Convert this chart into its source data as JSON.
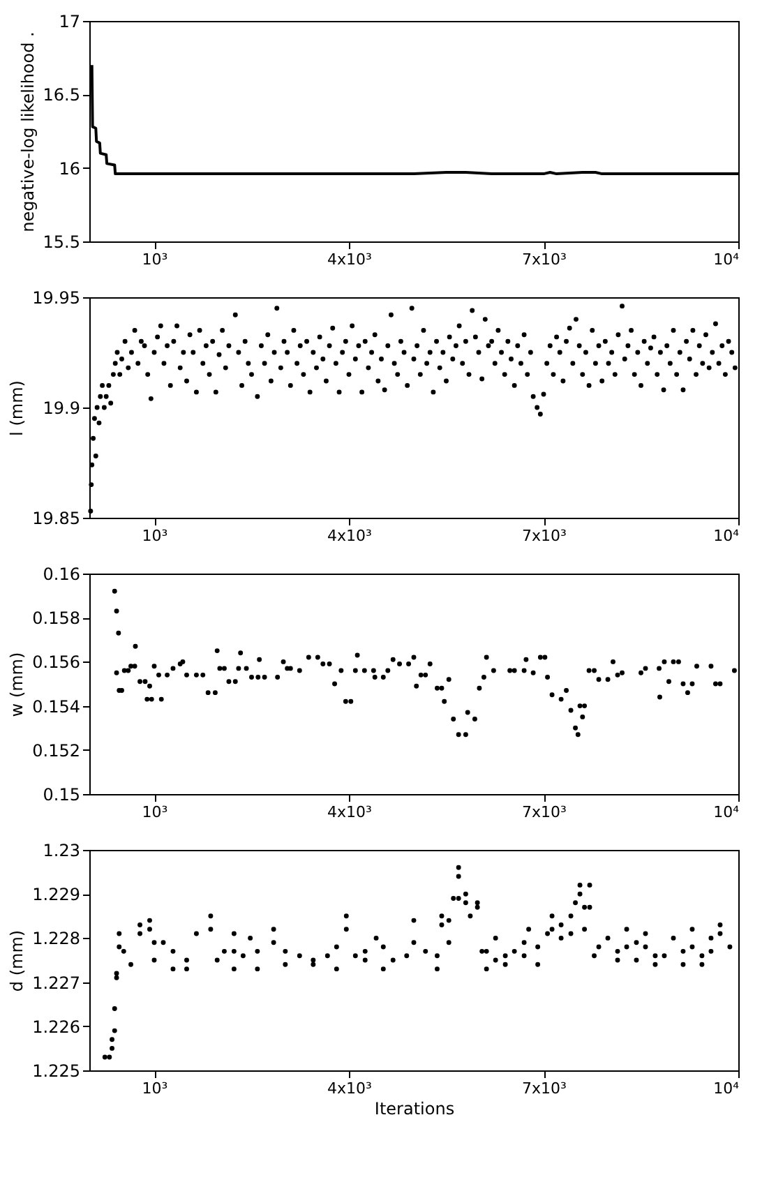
{
  "chart_data": [
    {
      "type": "line",
      "ylabel": "negative-log likelihood .",
      "color": "#000000",
      "xlim": [
        0,
        10000
      ],
      "ylim": [
        15.5,
        17
      ],
      "yticks": [
        15.5,
        16,
        16.5,
        17
      ],
      "grid": false,
      "tick_labels": true,
      "marker": "none",
      "line_style": "solid",
      "xticks": [
        {
          "value": 1000,
          "label": "10³"
        },
        {
          "value": 4000,
          "label": "4x10³"
        },
        {
          "value": 7000,
          "label": "7x10³"
        },
        {
          "value": 10000,
          "label": "10⁴"
        }
      ],
      "x": [
        40,
        50,
        100,
        110,
        160,
        170,
        260,
        270,
        390,
        400,
        600,
        1000,
        2000,
        3000,
        4000,
        5000,
        5500,
        5800,
        6200,
        7000,
        7100,
        7200,
        7600,
        7800,
        7900,
        8500,
        9000,
        10000
      ],
      "values": [
        16.7,
        16.28,
        16.27,
        16.18,
        16.17,
        16.1,
        16.09,
        16.03,
        16.02,
        15.96,
        15.96,
        15.96,
        15.96,
        15.96,
        15.96,
        15.96,
        15.97,
        15.97,
        15.96,
        15.96,
        15.97,
        15.96,
        15.97,
        15.97,
        15.96,
        15.96,
        15.96,
        15.96
      ]
    },
    {
      "type": "scatter",
      "ylabel": "l (mm)",
      "color": "#000000",
      "xlim": [
        0,
        10000
      ],
      "ylim": [
        19.85,
        19.95
      ],
      "yticks": [
        19.85,
        19.9,
        19.95
      ],
      "grid": false,
      "marker": "circle",
      "xticks": [
        {
          "value": 1000,
          "label": "10³"
        },
        {
          "value": 4000,
          "label": "4x10³"
        },
        {
          "value": 7000,
          "label": "7x10³"
        },
        {
          "value": 10000,
          "label": "10⁴"
        }
      ],
      "x": [
        20,
        30,
        40,
        60,
        80,
        100,
        120,
        150,
        170,
        200,
        230,
        260,
        300,
        330,
        370,
        400,
        430,
        470,
        500,
        550,
        600,
        650,
        700,
        750,
        800,
        850,
        900,
        950,
        1000,
        1050,
        1100,
        1150,
        1200,
        1250,
        1300,
        1350,
        1400,
        1450,
        1500,
        1550,
        1600,
        1650,
        1700,
        1750,
        1800,
        1850,
        1900,
        1950,
        2000,
        2050,
        2100,
        2150,
        2250,
        2300,
        2350,
        2400,
        2450,
        2500,
        2590,
        2650,
        2700,
        2750,
        2800,
        2850,
        2890,
        2950,
        3000,
        3050,
        3100,
        3150,
        3200,
        3250,
        3300,
        3350,
        3400,
        3450,
        3500,
        3550,
        3600,
        3650,
        3700,
        3750,
        3800,
        3850,
        3900,
        3950,
        4000,
        4050,
        4100,
        4150,
        4200,
        4250,
        4300,
        4350,
        4400,
        4450,
        4500,
        4550,
        4600,
        4650,
        4700,
        4750,
        4800,
        4850,
        4900,
        4970,
        5000,
        5050,
        5100,
        5150,
        5200,
        5250,
        5300,
        5350,
        5400,
        5450,
        5500,
        5550,
        5600,
        5650,
        5700,
        5750,
        5800,
        5850,
        5900,
        5950,
        6000,
        6050,
        6100,
        6150,
        6200,
        6250,
        6300,
        6350,
        6400,
        6450,
        6500,
        6550,
        6600,
        6650,
        6700,
        6750,
        6800,
        6840,
        6900,
        6950,
        7000,
        7050,
        7100,
        7150,
        7200,
        7250,
        7300,
        7350,
        7400,
        7450,
        7500,
        7550,
        7600,
        7650,
        7700,
        7750,
        7800,
        7850,
        7900,
        7950,
        8000,
        8050,
        8100,
        8150,
        8210,
        8250,
        8300,
        8350,
        8400,
        8450,
        8500,
        8550,
        8600,
        8650,
        8700,
        8750,
        8800,
        8850,
        8900,
        8950,
        9000,
        9050,
        9100,
        9150,
        9200,
        9250,
        9300,
        9350,
        9400,
        9450,
        9500,
        9550,
        9600,
        9650,
        9700,
        9750,
        9800,
        9850,
        9900,
        9950
      ],
      "values": [
        19.853,
        19.865,
        19.874,
        19.886,
        19.895,
        19.878,
        19.9,
        19.893,
        19.905,
        19.91,
        19.9,
        19.905,
        19.91,
        19.902,
        19.915,
        19.92,
        19.925,
        19.915,
        19.922,
        19.93,
        19.918,
        19.925,
        19.935,
        19.92,
        19.93,
        19.928,
        19.915,
        19.904,
        19.925,
        19.932,
        19.937,
        19.92,
        19.928,
        19.91,
        19.93,
        19.937,
        19.918,
        19.925,
        19.912,
        19.933,
        19.925,
        19.907,
        19.935,
        19.92,
        19.928,
        19.915,
        19.93,
        19.907,
        19.924,
        19.935,
        19.918,
        19.928,
        19.942,
        19.925,
        19.91,
        19.93,
        19.92,
        19.915,
        19.905,
        19.928,
        19.92,
        19.933,
        19.912,
        19.925,
        19.945,
        19.918,
        19.93,
        19.925,
        19.91,
        19.935,
        19.92,
        19.928,
        19.915,
        19.93,
        19.907,
        19.925,
        19.918,
        19.932,
        19.922,
        19.912,
        19.928,
        19.936,
        19.92,
        19.907,
        19.925,
        19.93,
        19.915,
        19.937,
        19.922,
        19.928,
        19.907,
        19.93,
        19.918,
        19.925,
        19.933,
        19.912,
        19.922,
        19.908,
        19.928,
        19.942,
        19.92,
        19.915,
        19.93,
        19.925,
        19.91,
        19.945,
        19.922,
        19.928,
        19.915,
        19.935,
        19.92,
        19.925,
        19.907,
        19.93,
        19.918,
        19.925,
        19.912,
        19.932,
        19.922,
        19.928,
        19.937,
        19.92,
        19.93,
        19.915,
        19.944,
        19.932,
        19.925,
        19.913,
        19.94,
        19.928,
        19.93,
        19.92,
        19.935,
        19.925,
        19.915,
        19.93,
        19.922,
        19.91,
        19.928,
        19.92,
        19.933,
        19.915,
        19.925,
        19.905,
        19.9,
        19.897,
        19.906,
        19.92,
        19.928,
        19.915,
        19.932,
        19.925,
        19.912,
        19.93,
        19.936,
        19.92,
        19.94,
        19.928,
        19.915,
        19.925,
        19.91,
        19.935,
        19.92,
        19.928,
        19.912,
        19.93,
        19.92,
        19.925,
        19.915,
        19.933,
        19.946,
        19.922,
        19.928,
        19.935,
        19.915,
        19.925,
        19.91,
        19.93,
        19.92,
        19.927,
        19.932,
        19.915,
        19.925,
        19.908,
        19.928,
        19.92,
        19.935,
        19.915,
        19.925,
        19.908,
        19.93,
        19.922,
        19.935,
        19.915,
        19.928,
        19.92,
        19.933,
        19.918,
        19.925,
        19.938,
        19.92,
        19.928,
        19.915,
        19.93,
        19.925,
        19.918
      ]
    },
    {
      "type": "scatter",
      "ylabel": "w (mm)",
      "color": "#000000",
      "xlim": [
        0,
        10000
      ],
      "ylim": [
        0.15,
        0.16
      ],
      "yticks": [
        0.15,
        0.152,
        0.154,
        0.156,
        0.158,
        0.16
      ],
      "grid": false,
      "marker": "circle",
      "xticks": [
        {
          "value": 1000,
          "label": "10³"
        },
        {
          "value": 4000,
          "label": "4x10³"
        },
        {
          "value": 7000,
          "label": "7x10³"
        },
        {
          "value": 10000,
          "label": "10⁴"
        }
      ],
      "x": [
        390,
        420,
        450,
        420,
        460,
        500,
        540,
        600,
        640,
        700,
        710,
        780,
        860,
        890,
        960,
        930,
        1000,
        1110,
        1070,
        1200,
        1290,
        1400,
        1440,
        1500,
        1650,
        1750,
        1830,
        1940,
        1970,
        2010,
        2080,
        2150,
        2250,
        2300,
        2420,
        2330,
        2500,
        2600,
        2620,
        2700,
        2900,
        2990,
        3050,
        3100,
        3240,
        3380,
        3520,
        3600,
        3700,
        3780,
        3880,
        3950,
        4030,
        4100,
        4130,
        4240,
        4380,
        4400,
        4530,
        4600,
        4680,
        4780,
        4920,
        5000,
        5040,
        5110,
        5180,
        5250,
        5360,
        5430,
        5470,
        5540,
        5610,
        5690,
        5800,
        5830,
        5940,
        6010,
        6080,
        6120,
        6230,
        6480,
        6550,
        6700,
        6730,
        6840,
        6950,
        7020,
        7060,
        7130,
        7270,
        7350,
        7420,
        7490,
        7530,
        7560,
        7630,
        7600,
        7700,
        7780,
        7850,
        7990,
        8070,
        8140,
        8210,
        8500,
        8570,
        8780,
        8790,
        8860,
        8930,
        9000,
        9080,
        9150,
        9290,
        9220,
        9360,
        9580,
        9650,
        9720,
        9940
      ],
      "values": [
        0.1592,
        0.1583,
        0.1573,
        0.1555,
        0.1547,
        0.1547,
        0.1556,
        0.1556,
        0.1558,
        0.1558,
        0.1567,
        0.1551,
        0.1551,
        0.1543,
        0.1543,
        0.1549,
        0.1558,
        0.1543,
        0.1554,
        0.1554,
        0.1557,
        0.1559,
        0.156,
        0.1554,
        0.1554,
        0.1554,
        0.1546,
        0.1546,
        0.1565,
        0.1557,
        0.1557,
        0.1551,
        0.1551,
        0.1557,
        0.1557,
        0.1564,
        0.1553,
        0.1553,
        0.1561,
        0.1553,
        0.1553,
        0.156,
        0.1557,
        0.1557,
        0.1556,
        0.1562,
        0.1562,
        0.1559,
        0.1559,
        0.155,
        0.1556,
        0.1542,
        0.1542,
        0.1556,
        0.1563,
        0.1556,
        0.1556,
        0.1553,
        0.1553,
        0.1556,
        0.1561,
        0.1559,
        0.1559,
        0.1562,
        0.1549,
        0.1554,
        0.1554,
        0.1559,
        0.1548,
        0.1548,
        0.1542,
        0.1552,
        0.1534,
        0.1527,
        0.1527,
        0.1537,
        0.1534,
        0.1548,
        0.1553,
        0.1562,
        0.1556,
        0.1556,
        0.1556,
        0.1556,
        0.1561,
        0.1555,
        0.1562,
        0.1562,
        0.1553,
        0.1545,
        0.1543,
        0.1547,
        0.1538,
        0.153,
        0.1527,
        0.154,
        0.154,
        0.1535,
        0.1556,
        0.1556,
        0.1552,
        0.1552,
        0.156,
        0.1554,
        0.1555,
        0.1555,
        0.1557,
        0.1557,
        0.1544,
        0.156,
        0.1551,
        0.156,
        0.156,
        0.155,
        0.155,
        0.1546,
        0.1558,
        0.1558,
        0.155,
        0.155,
        0.1556
      ]
    },
    {
      "type": "scatter",
      "ylabel": "d (mm)",
      "xlabel": "Iterations",
      "color": "#000000",
      "xlim": [
        0,
        10000
      ],
      "ylim": [
        1.225,
        1.23
      ],
      "yticks": [
        1.225,
        1.226,
        1.227,
        1.228,
        1.229,
        1.23
      ],
      "grid": false,
      "marker": "circle",
      "xticks": [
        {
          "value": 1000,
          "label": "10³"
        },
        {
          "value": 4000,
          "label": "4x10³"
        },
        {
          "value": 7000,
          "label": "7x10³"
        },
        {
          "value": 10000,
          "label": "10⁴"
        }
      ],
      "x": [
        240,
        310,
        350,
        350,
        390,
        390,
        420,
        420,
        460,
        460,
        530,
        640,
        780,
        780,
        930,
        930,
        1000,
        1000,
        1140,
        1290,
        1290,
        1500,
        1500,
        1650,
        1870,
        1870,
        1970,
        2080,
        2230,
        2230,
        2230,
        2370,
        2480,
        2590,
        2590,
        2840,
        2840,
        3020,
        3020,
        3240,
        3450,
        3450,
        3670,
        3810,
        3810,
        3960,
        3960,
        4100,
        4250,
        4250,
        4420,
        4530,
        4530,
        4680,
        4890,
        5000,
        5000,
        5180,
        5360,
        5360,
        5430,
        5430,
        5540,
        5540,
        5610,
        5690,
        5690,
        5690,
        5800,
        5800,
        5870,
        5980,
        5980,
        6050,
        6120,
        6120,
        6260,
        6260,
        6410,
        6410,
        6550,
        6700,
        6700,
        6770,
        6910,
        6910,
        7060,
        7130,
        7130,
        7270,
        7270,
        7420,
        7420,
        7490,
        7560,
        7560,
        7630,
        7630,
        7710,
        7710,
        7780,
        7850,
        7990,
        8140,
        8140,
        8280,
        8280,
        8430,
        8430,
        8570,
        8570,
        8720,
        8720,
        8860,
        9000,
        9150,
        9150,
        9290,
        9290,
        9440,
        9440,
        9580,
        9580,
        9720,
        9720,
        9870
      ],
      "values": [
        1.2253,
        1.2253,
        1.2255,
        1.2257,
        1.2259,
        1.2264,
        1.2271,
        1.2272,
        1.2278,
        1.2281,
        1.2277,
        1.2274,
        1.2283,
        1.2281,
        1.2284,
        1.2282,
        1.2275,
        1.2279,
        1.2279,
        1.2277,
        1.2273,
        1.2275,
        1.2273,
        1.2281,
        1.2282,
        1.2285,
        1.2275,
        1.2277,
        1.2281,
        1.2277,
        1.2273,
        1.2276,
        1.228,
        1.2273,
        1.2277,
        1.2282,
        1.2279,
        1.2274,
        1.2277,
        1.2276,
        1.2275,
        1.2274,
        1.2276,
        1.2278,
        1.2273,
        1.2285,
        1.2282,
        1.2276,
        1.2275,
        1.2277,
        1.228,
        1.2278,
        1.2273,
        1.2275,
        1.2276,
        1.2284,
        1.2279,
        1.2277,
        1.2273,
        1.2276,
        1.2283,
        1.2285,
        1.2284,
        1.2279,
        1.2289,
        1.2296,
        1.2294,
        1.2289,
        1.229,
        1.2288,
        1.2285,
        1.2287,
        1.2288,
        1.2277,
        1.2273,
        1.2277,
        1.2275,
        1.228,
        1.2276,
        1.2274,
        1.2277,
        1.2279,
        1.2276,
        1.2282,
        1.2278,
        1.2274,
        1.2281,
        1.2285,
        1.2282,
        1.2283,
        1.228,
        1.2285,
        1.2281,
        1.2288,
        1.2292,
        1.229,
        1.2287,
        1.2282,
        1.2292,
        1.2287,
        1.2276,
        1.2278,
        1.228,
        1.2277,
        1.2275,
        1.2282,
        1.2278,
        1.2275,
        1.2279,
        1.2278,
        1.2281,
        1.2276,
        1.2274,
        1.2276,
        1.228,
        1.2274,
        1.2277,
        1.2282,
        1.2278,
        1.2276,
        1.2274,
        1.228,
        1.2277,
        1.2283,
        1.2281,
        1.2278
      ]
    }
  ]
}
